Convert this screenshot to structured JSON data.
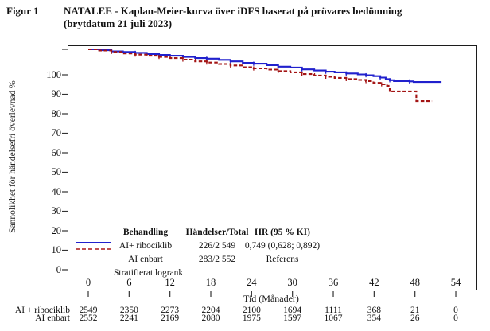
{
  "figure": {
    "label": "Figur 1",
    "title_line1": "NATALEE - Kaplan-Meier-kurva över iDFS baserat på prövares bedömning",
    "title_line2": "(brytdatum 21 juli 2023)"
  },
  "chart_data": {
    "type": "line",
    "subtype": "kaplan-meier",
    "title": "",
    "xlabel": "Tid (Månader)",
    "ylabel": "Sannolikhet för händelsefri överlevnad %",
    "xlim": [
      0,
      54
    ],
    "ylim": [
      0,
      100
    ],
    "x_ticks": [
      0,
      6,
      12,
      18,
      24,
      30,
      36,
      42,
      48,
      54
    ],
    "y_ticks": [
      0,
      10,
      20,
      30,
      40,
      50,
      60,
      70,
      80,
      90,
      100
    ],
    "grid": false,
    "legend": {
      "position": "inside-bottom-left",
      "col_headers": [
        "Behandling",
        "Händelser/Total",
        "HR (95 % KI)"
      ],
      "rows": [
        {
          "label": "AI+ ribociklib",
          "events_total": "226/2 549",
          "hr": "0,749 (0,628; 0,892)",
          "color": "#2121cd",
          "line": "solid"
        },
        {
          "label": "AI enbart",
          "events_total": "283/2 552",
          "hr": "Referens",
          "color": "#a31414",
          "line": "dashed"
        }
      ],
      "footer": "Stratifierat logrank"
    },
    "series": [
      {
        "name": "AI+ ribociklib",
        "color": "#2121cd",
        "style": "solid",
        "points": [
          [
            0,
            100
          ],
          [
            1.6,
            99.7
          ],
          [
            3.4,
            99.3
          ],
          [
            5.1,
            99.1
          ],
          [
            6.9,
            98.8
          ],
          [
            8.6,
            98.4
          ],
          [
            10.4,
            98.1
          ],
          [
            12,
            97.8
          ],
          [
            13.9,
            97.4
          ],
          [
            15.7,
            97
          ],
          [
            17.4,
            96.8
          ],
          [
            19.2,
            96.4
          ],
          [
            20.9,
            95.9
          ],
          [
            22.7,
            95.4
          ],
          [
            24.3,
            95.1
          ],
          [
            26.2,
            94.6
          ],
          [
            27.9,
            94.1
          ],
          [
            29.7,
            93.8
          ],
          [
            31.4,
            93.2
          ],
          [
            33.2,
            92.8
          ],
          [
            34.9,
            92.4
          ],
          [
            36.2,
            92.2
          ],
          [
            37.9,
            91.8
          ],
          [
            39.6,
            91.5
          ],
          [
            40.8,
            91.2
          ],
          [
            41.9,
            90.9
          ],
          [
            42.9,
            90.4
          ],
          [
            43.7,
            89.9
          ],
          [
            44.3,
            89.5
          ],
          [
            44.9,
            89.2
          ],
          [
            47.2,
            89.1
          ],
          [
            47.8,
            88.9
          ],
          [
            51.9,
            88.9
          ]
        ]
      },
      {
        "name": "AI enbart",
        "color": "#a31414",
        "style": "dashed",
        "points": [
          [
            0,
            100
          ],
          [
            1.6,
            99.6
          ],
          [
            3.4,
            99.1
          ],
          [
            5.1,
            98.6
          ],
          [
            6.9,
            98.2
          ],
          [
            8.6,
            97.8
          ],
          [
            10.4,
            97.4
          ],
          [
            12,
            97
          ],
          [
            13.9,
            96.5
          ],
          [
            15.7,
            95.9
          ],
          [
            17.4,
            95.5
          ],
          [
            19.2,
            95
          ],
          [
            20.9,
            94.5
          ],
          [
            22.7,
            93.9
          ],
          [
            24.3,
            93.5
          ],
          [
            26.2,
            93.1
          ],
          [
            27.9,
            92.6
          ],
          [
            29.7,
            92.2
          ],
          [
            31.4,
            91.6
          ],
          [
            33.2,
            91.1
          ],
          [
            34.9,
            90.7
          ],
          [
            36.2,
            90.3
          ],
          [
            37.9,
            89.9
          ],
          [
            39.6,
            89.6
          ],
          [
            40.8,
            89.2
          ],
          [
            41.9,
            88.6
          ],
          [
            43.1,
            88.1
          ],
          [
            43.9,
            87.6
          ],
          [
            44.3,
            85.7
          ],
          [
            48.1,
            85.7
          ],
          [
            48.2,
            82.4
          ],
          [
            50.5,
            82.4
          ]
        ]
      }
    ],
    "at_risk": {
      "rows": [
        {
          "label": "AI + ribociklib",
          "counts": [
            "2549",
            "2350",
            "2273",
            "2204",
            "2100",
            "1694",
            "1111",
            "368",
            "21",
            "0"
          ]
        },
        {
          "label": "AI enbart",
          "counts": [
            "2552",
            "2241",
            "2169",
            "2080",
            "1975",
            "1597",
            "1067",
            "354",
            "26",
            "0"
          ]
        }
      ]
    }
  }
}
